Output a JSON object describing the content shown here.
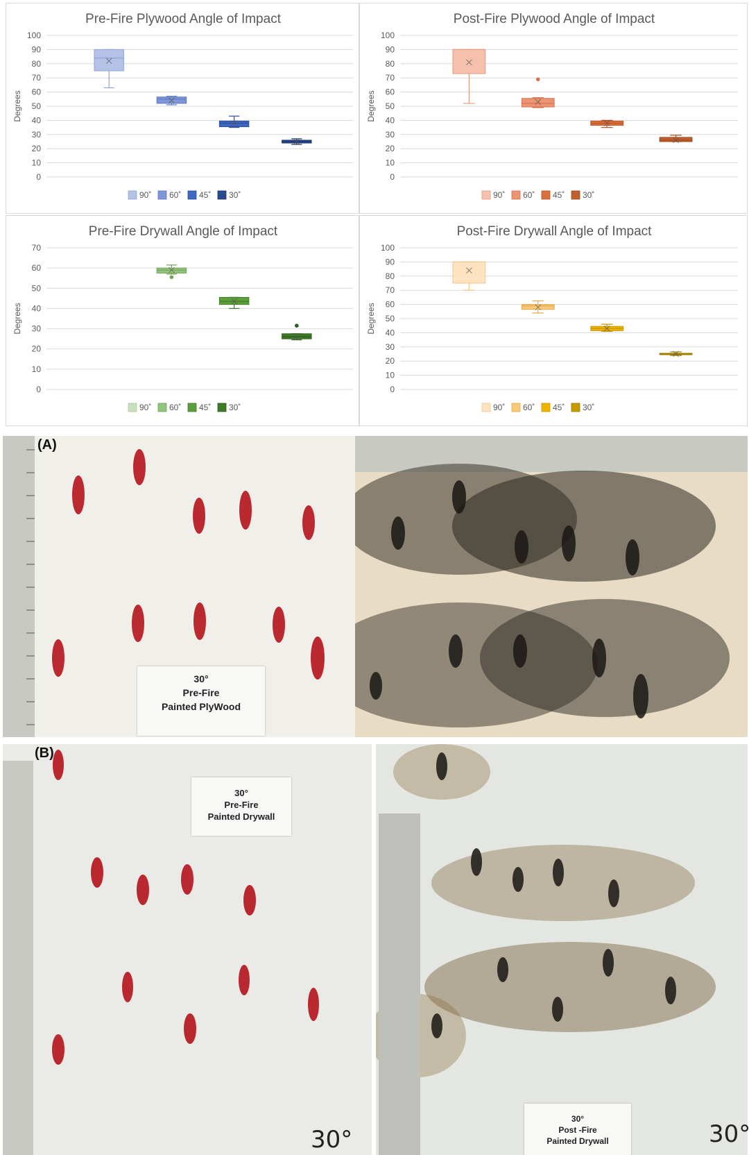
{
  "chart_data": [
    {
      "type": "box",
      "title": "Pre-Fire Plywood Angle of Impact",
      "ylabel": "Degrees",
      "ylim": [
        0,
        100
      ],
      "yticks": [
        0,
        10,
        20,
        30,
        40,
        50,
        60,
        70,
        80,
        90,
        100
      ],
      "legend_position": "bottom",
      "grid": true,
      "series": [
        {
          "name": "90˚",
          "color": "#b4c2e6",
          "stroke": "#8fa3d6",
          "min": 63,
          "q1": 75,
          "median": 84,
          "q3": 90,
          "max": 90,
          "mean": 82,
          "outliers": []
        },
        {
          "name": "60˚",
          "color": "#7f97d6",
          "stroke": "#5d79c4",
          "min": 51,
          "q1": 52,
          "median": 55,
          "q3": 56.5,
          "max": 57,
          "mean": 54,
          "outliers": []
        },
        {
          "name": "45˚",
          "color": "#3f66c0",
          "stroke": "#2c4f9e",
          "min": 35,
          "q1": 35.5,
          "median": 38,
          "q3": 39.5,
          "max": 43,
          "mean": 38,
          "outliers": []
        },
        {
          "name": "30˚",
          "color": "#2a4a8e",
          "stroke": "#1d3670",
          "min": 23,
          "q1": 24,
          "median": 25,
          "q3": 26,
          "max": 27,
          "mean": 25,
          "outliers": []
        }
      ]
    },
    {
      "type": "box",
      "title": "Post-Fire Plywood Angle of Impact",
      "ylabel": "Degrees",
      "ylim": [
        0,
        100
      ],
      "yticks": [
        0,
        10,
        20,
        30,
        40,
        50,
        60,
        70,
        80,
        90,
        100
      ],
      "legend_position": "bottom",
      "grid": true,
      "series": [
        {
          "name": "90˚",
          "color": "#f5c1ad",
          "stroke": "#e49a80",
          "min": 52,
          "q1": 73,
          "median": 90,
          "q3": 90,
          "max": 90,
          "mean": 81,
          "outliers": []
        },
        {
          "name": "60˚",
          "color": "#ec9575",
          "stroke": "#d9704d",
          "min": 49,
          "q1": 49.5,
          "median": 52,
          "q3": 55.5,
          "max": 56,
          "mean": 53,
          "outliers": [
            69
          ]
        },
        {
          "name": "45˚",
          "color": "#d9703c",
          "stroke": "#bb5526",
          "min": 35,
          "q1": 36.5,
          "median": 38,
          "q3": 39.5,
          "max": 40,
          "mean": 38,
          "outliers": []
        },
        {
          "name": "30˚",
          "color": "#c0602e",
          "stroke": "#9e4a1f",
          "min": 25,
          "q1": 25,
          "median": 26,
          "q3": 28,
          "max": 29.5,
          "mean": 26,
          "outliers": []
        }
      ]
    },
    {
      "type": "box",
      "title": "Pre-Fire Drywall Angle of Impact",
      "ylabel": "Degrees",
      "ylim": [
        0,
        70
      ],
      "yticks": [
        0,
        10,
        20,
        30,
        40,
        50,
        60,
        70
      ],
      "legend_position": "bottom",
      "grid": true,
      "series": [
        {
          "name": "90˚",
          "color": "#c9e0bf",
          "stroke": "#a9c99c",
          "min": null,
          "q1": null,
          "median": null,
          "q3": null,
          "max": null,
          "mean": null,
          "outliers": []
        },
        {
          "name": "60˚",
          "color": "#93c47d",
          "stroke": "#6fa557",
          "min": 57,
          "q1": 57.5,
          "median": 59,
          "q3": 60,
          "max": 61.5,
          "mean": 59,
          "outliers": [
            55.5
          ]
        },
        {
          "name": "45˚",
          "color": "#5c9e3a",
          "stroke": "#437c27",
          "min": 40,
          "q1": 42,
          "median": 43.5,
          "q3": 45.5,
          "max": 45.5,
          "mean": 43.5,
          "outliers": []
        },
        {
          "name": "30˚",
          "color": "#3f7a28",
          "stroke": "#2d5c1b",
          "min": 24.5,
          "q1": 25,
          "median": 26,
          "q3": 27.5,
          "max": 27.5,
          "mean": 26,
          "outliers": [
            31.5
          ]
        }
      ]
    },
    {
      "type": "box",
      "title": "Post-Fire Drywall Angle of Impact",
      "ylabel": "Degrees",
      "ylim": [
        0,
        100
      ],
      "yticks": [
        0,
        10,
        20,
        30,
        40,
        50,
        60,
        70,
        80,
        90,
        100
      ],
      "legend_position": "bottom",
      "grid": true,
      "series": [
        {
          "name": "90˚",
          "color": "#fde3c0",
          "stroke": "#f2c68b",
          "min": 70,
          "q1": 75,
          "median": 90,
          "q3": 90,
          "max": 90,
          "mean": 84,
          "outliers": []
        },
        {
          "name": "60˚",
          "color": "#f8c97a",
          "stroke": "#e6ab4a",
          "min": 54,
          "q1": 56.5,
          "median": 59,
          "q3": 60,
          "max": 62.5,
          "mean": 58,
          "outliers": []
        },
        {
          "name": "45˚",
          "color": "#f0b400",
          "stroke": "#c99500",
          "min": 41,
          "q1": 41.5,
          "median": 43,
          "q3": 44.5,
          "max": 46,
          "mean": 43,
          "outliers": []
        },
        {
          "name": "30˚",
          "color": "#c79a00",
          "stroke": "#a07b00",
          "min": 24,
          "q1": 24.5,
          "median": 25,
          "q3": 25.5,
          "max": 26.5,
          "mean": 25,
          "outliers": []
        }
      ]
    }
  ],
  "photos": {
    "panel_a_label": "(A)",
    "panel_b_label": "(B)",
    "card_a": [
      "30°",
      "Pre-Fire",
      "Painted PlyWood"
    ],
    "card_b_pre": [
      "30°",
      "Pre-Fire",
      "Painted Drywall"
    ],
    "card_b_post": [
      "30°",
      "Post -Fire",
      "Painted Drywall"
    ],
    "handwritten_b_left": "30°",
    "handwritten_b_right": "30°"
  }
}
